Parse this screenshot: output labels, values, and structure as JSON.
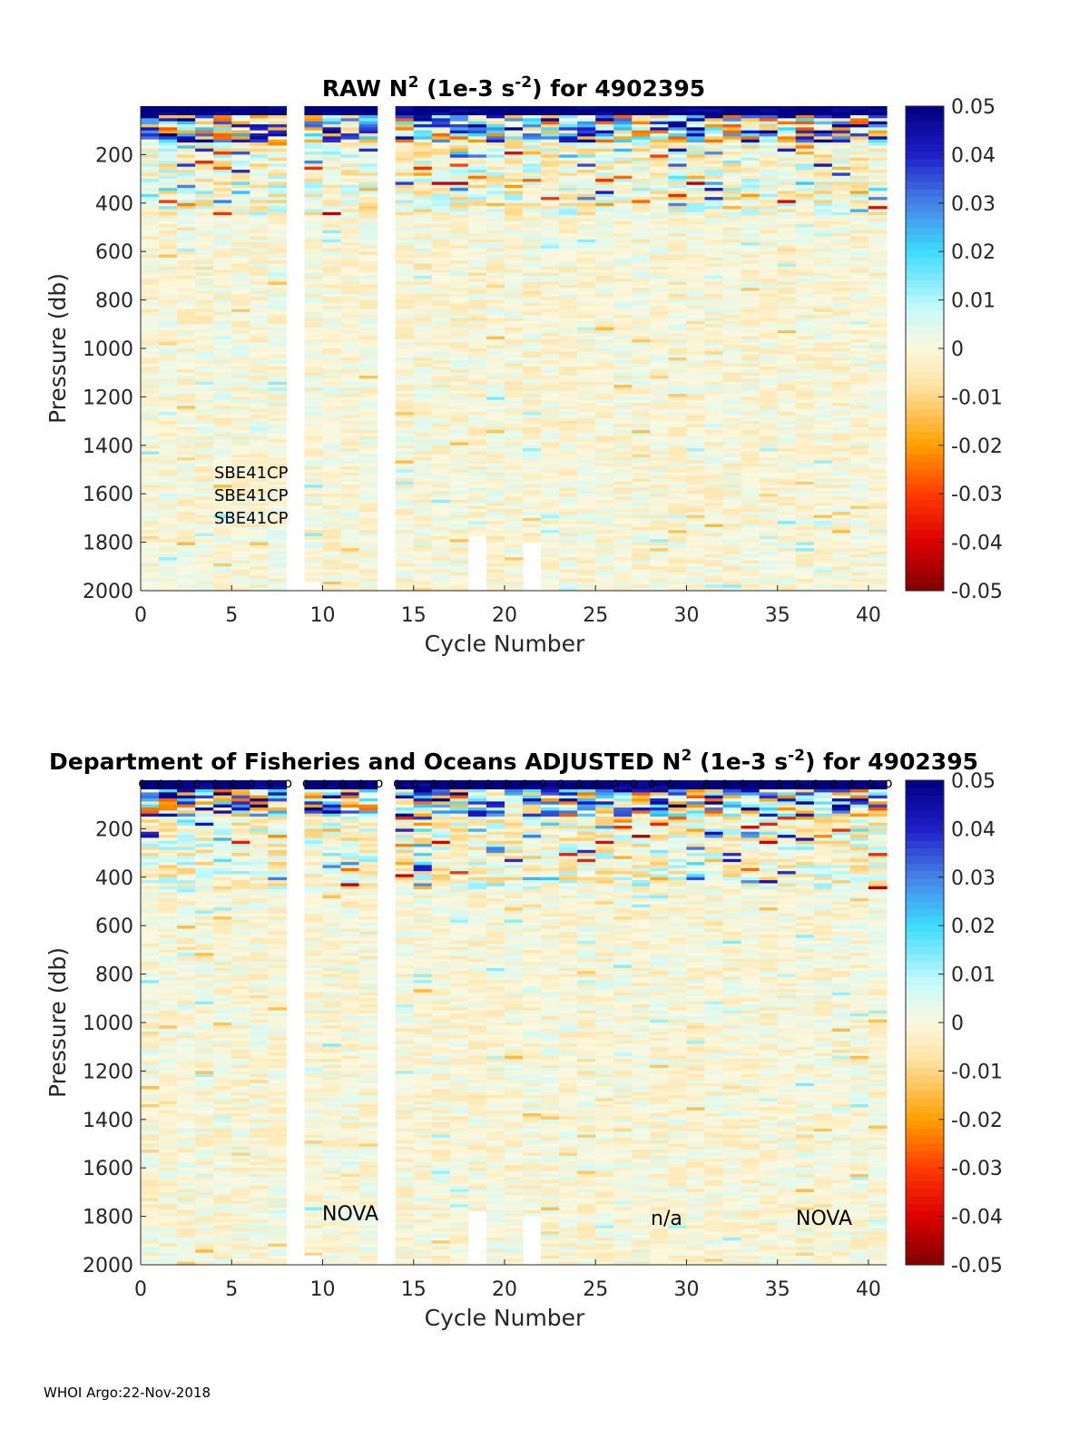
{
  "chart_data": [
    {
      "type": "heatmap",
      "title_prefix": "RAW N",
      "title_sup1": "2",
      "title_mid": " (1e-3 s",
      "title_sup2": "-2",
      "title_suffix": ") for 4902395",
      "xlabel": "Cycle Number",
      "ylabel": "Pressure (db)",
      "xlim": [
        0,
        41
      ],
      "ylim": [
        0,
        2000
      ],
      "y_reversed": true,
      "xticks": [
        "0",
        "5",
        "10",
        "15",
        "20",
        "25",
        "30",
        "35",
        "40"
      ],
      "yticks": [
        "200",
        "400",
        "600",
        "800",
        "1000",
        "1200",
        "1400",
        "1600",
        "1800",
        "2000"
      ],
      "colorbar": {
        "range": [
          -0.05,
          0.05
        ],
        "ticks": [
          "0.05",
          "0.04",
          "0.03",
          "0.02",
          "0.01",
          "0",
          "-0.01",
          "-0.02",
          "-0.03",
          "-0.04",
          "-0.05"
        ]
      },
      "missing_cycles": [
        8,
        13
      ],
      "partial_profiles": [
        {
          "cycle": 9,
          "max_pressure": 1960
        },
        {
          "cycle": 18,
          "max_pressure": 1775
        },
        {
          "cycle": 21,
          "max_pressure": 1800
        }
      ],
      "annotations": [
        "SBE41CP",
        "SBE41CP",
        "SBE41CP"
      ],
      "qc_markers": false
    },
    {
      "type": "heatmap",
      "title_prefix": "Department of Fisheries and Oceans  ADJUSTED N",
      "title_sup1": "2",
      "title_mid": " (1e-3 s",
      "title_sup2": "-2",
      "title_suffix": ") for 4902395",
      "xlabel": "Cycle Number",
      "ylabel": "Pressure (db)",
      "xlim": [
        0,
        41
      ],
      "ylim": [
        0,
        2000
      ],
      "y_reversed": true,
      "xticks": [
        "0",
        "5",
        "10",
        "15",
        "20",
        "25",
        "30",
        "35",
        "40"
      ],
      "yticks": [
        "200",
        "400",
        "600",
        "800",
        "1000",
        "1200",
        "1400",
        "1600",
        "1800",
        "2000"
      ],
      "colorbar": {
        "range": [
          -0.05,
          0.05
        ],
        "ticks": [
          "0.05",
          "0.04",
          "0.03",
          "0.02",
          "0.01",
          "0",
          "-0.01",
          "-0.02",
          "-0.03",
          "-0.04",
          "-0.05"
        ]
      },
      "missing_cycles": [
        8,
        13
      ],
      "partial_profiles": [
        {
          "cycle": 9,
          "max_pressure": 1960
        },
        {
          "cycle": 18,
          "max_pressure": 1775
        },
        {
          "cycle": 21,
          "max_pressure": 1800
        }
      ],
      "annotations": [
        "NOVA",
        "n/a",
        "NOVA"
      ],
      "qc_markers": true,
      "qc_marker_symbol": "o"
    }
  ],
  "footer": "WHOI Argo:22-Nov-2018"
}
